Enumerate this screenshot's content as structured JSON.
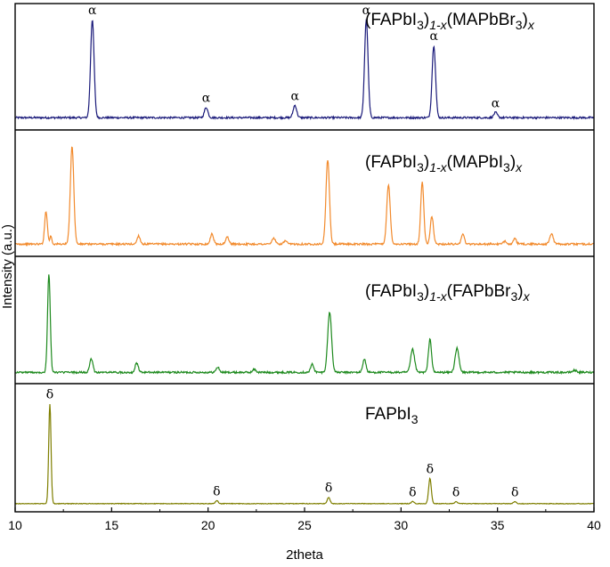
{
  "chart_data": {
    "type": "line",
    "xlabel": "2theta",
    "ylabel": "Intensity (a.u.)",
    "xlim": [
      10,
      40
    ],
    "xticks": [
      10,
      15,
      20,
      25,
      30,
      35,
      40
    ],
    "stacked_panels": true,
    "grid": false,
    "series": [
      {
        "name_parts": [
          {
            "t": "(FAPbI",
            "s": "normal"
          },
          {
            "t": "3",
            "s": "sub"
          },
          {
            "t": ")",
            "s": "normal"
          },
          {
            "t": "1-x",
            "s": "subital"
          },
          {
            "t": "(MAPbBr",
            "s": "normal"
          },
          {
            "t": "3",
            "s": "sub"
          },
          {
            "t": ")",
            "s": "normal"
          },
          {
            "t": "x",
            "s": "subital"
          }
        ],
        "color": "#1a1a7a",
        "baseline": 0.05,
        "noise": 0.009,
        "peaks": [
          {
            "x": 14.0,
            "h": 0.95,
            "w": 0.09
          },
          {
            "x": 19.9,
            "h": 0.1,
            "w": 0.09
          },
          {
            "x": 24.5,
            "h": 0.12,
            "w": 0.09
          },
          {
            "x": 28.2,
            "h": 0.95,
            "w": 0.09
          },
          {
            "x": 31.7,
            "h": 0.7,
            "w": 0.09
          },
          {
            "x": 34.9,
            "h": 0.05,
            "w": 0.09
          }
        ],
        "markers": [
          {
            "x": 14.0,
            "symbol": "α"
          },
          {
            "x": 19.9,
            "symbol": "α"
          },
          {
            "x": 24.5,
            "symbol": "α"
          },
          {
            "x": 28.2,
            "symbol": "α"
          },
          {
            "x": 31.7,
            "symbol": "α"
          },
          {
            "x": 34.9,
            "symbol": "α"
          }
        ]
      },
      {
        "name_parts": [
          {
            "t": "(FAPbI",
            "s": "normal"
          },
          {
            "t": "3",
            "s": "sub"
          },
          {
            "t": ")",
            "s": "normal"
          },
          {
            "t": "1-x",
            "s": "subital"
          },
          {
            "t": "(MAPbI",
            "s": "normal"
          },
          {
            "t": "3",
            "s": "sub"
          },
          {
            "t": ")",
            "s": "normal"
          },
          {
            "t": "x",
            "s": "subital"
          }
        ],
        "color": "#f28a2c",
        "baseline": 0.05,
        "noise": 0.009,
        "peaks": [
          {
            "x": 11.6,
            "h": 0.32,
            "w": 0.07
          },
          {
            "x": 11.85,
            "h": 0.08,
            "w": 0.05
          },
          {
            "x": 12.95,
            "h": 0.95,
            "w": 0.09
          },
          {
            "x": 16.4,
            "h": 0.08,
            "w": 0.08
          },
          {
            "x": 20.2,
            "h": 0.1,
            "w": 0.08
          },
          {
            "x": 21.0,
            "h": 0.07,
            "w": 0.08
          },
          {
            "x": 23.4,
            "h": 0.06,
            "w": 0.08
          },
          {
            "x": 24.0,
            "h": 0.03,
            "w": 0.08
          },
          {
            "x": 26.2,
            "h": 0.82,
            "w": 0.09
          },
          {
            "x": 29.35,
            "h": 0.57,
            "w": 0.09
          },
          {
            "x": 31.1,
            "h": 0.6,
            "w": 0.08
          },
          {
            "x": 31.6,
            "h": 0.27,
            "w": 0.08
          },
          {
            "x": 33.2,
            "h": 0.1,
            "w": 0.08
          },
          {
            "x": 35.4,
            "h": 0.03,
            "w": 0.08
          },
          {
            "x": 35.9,
            "h": 0.05,
            "w": 0.08
          },
          {
            "x": 37.8,
            "h": 0.1,
            "w": 0.09
          }
        ],
        "markers": []
      },
      {
        "name_parts": [
          {
            "t": "(FAPbI",
            "s": "normal"
          },
          {
            "t": "3",
            "s": "sub"
          },
          {
            "t": ")",
            "s": "normal"
          },
          {
            "t": "1-x",
            "s": "subital"
          },
          {
            "t": "(FAPbBr",
            "s": "normal"
          },
          {
            "t": "3",
            "s": "sub"
          },
          {
            "t": ")",
            "s": "normal"
          },
          {
            "t": "x",
            "s": "subital"
          }
        ],
        "color": "#1e8a1e",
        "baseline": 0.04,
        "noise": 0.009,
        "peaks": [
          {
            "x": 11.75,
            "h": 0.95,
            "w": 0.07
          },
          {
            "x": 13.95,
            "h": 0.13,
            "w": 0.08
          },
          {
            "x": 16.3,
            "h": 0.09,
            "w": 0.08
          },
          {
            "x": 20.5,
            "h": 0.05,
            "w": 0.08
          },
          {
            "x": 22.4,
            "h": 0.03,
            "w": 0.08
          },
          {
            "x": 25.4,
            "h": 0.08,
            "w": 0.08
          },
          {
            "x": 26.3,
            "h": 0.58,
            "w": 0.1
          },
          {
            "x": 28.1,
            "h": 0.13,
            "w": 0.08
          },
          {
            "x": 30.6,
            "h": 0.22,
            "w": 0.1
          },
          {
            "x": 31.5,
            "h": 0.32,
            "w": 0.08
          },
          {
            "x": 32.9,
            "h": 0.23,
            "w": 0.1
          },
          {
            "x": 39.0,
            "h": 0.02,
            "w": 0.1
          }
        ],
        "markers": []
      },
      {
        "name_parts": [
          {
            "t": "FAPbI",
            "s": "normal"
          },
          {
            "t": "3",
            "s": "sub"
          }
        ],
        "color": "#7f7f00",
        "baseline": 0.01,
        "noise": 0.003,
        "peaks": [
          {
            "x": 11.8,
            "h": 0.95,
            "w": 0.06
          },
          {
            "x": 20.45,
            "h": 0.03,
            "w": 0.07
          },
          {
            "x": 26.25,
            "h": 0.06,
            "w": 0.07
          },
          {
            "x": 30.6,
            "h": 0.02,
            "w": 0.07
          },
          {
            "x": 31.5,
            "h": 0.24,
            "w": 0.07
          },
          {
            "x": 32.85,
            "h": 0.02,
            "w": 0.07
          },
          {
            "x": 35.9,
            "h": 0.02,
            "w": 0.07
          }
        ],
        "markers": [
          {
            "x": 11.8,
            "symbol": "δ"
          },
          {
            "x": 20.45,
            "symbol": "δ"
          },
          {
            "x": 26.25,
            "symbol": "δ"
          },
          {
            "x": 30.6,
            "symbol": "δ"
          },
          {
            "x": 31.5,
            "symbol": "δ"
          },
          {
            "x": 32.85,
            "symbol": "δ"
          },
          {
            "x": 35.9,
            "symbol": "δ"
          }
        ]
      }
    ]
  }
}
